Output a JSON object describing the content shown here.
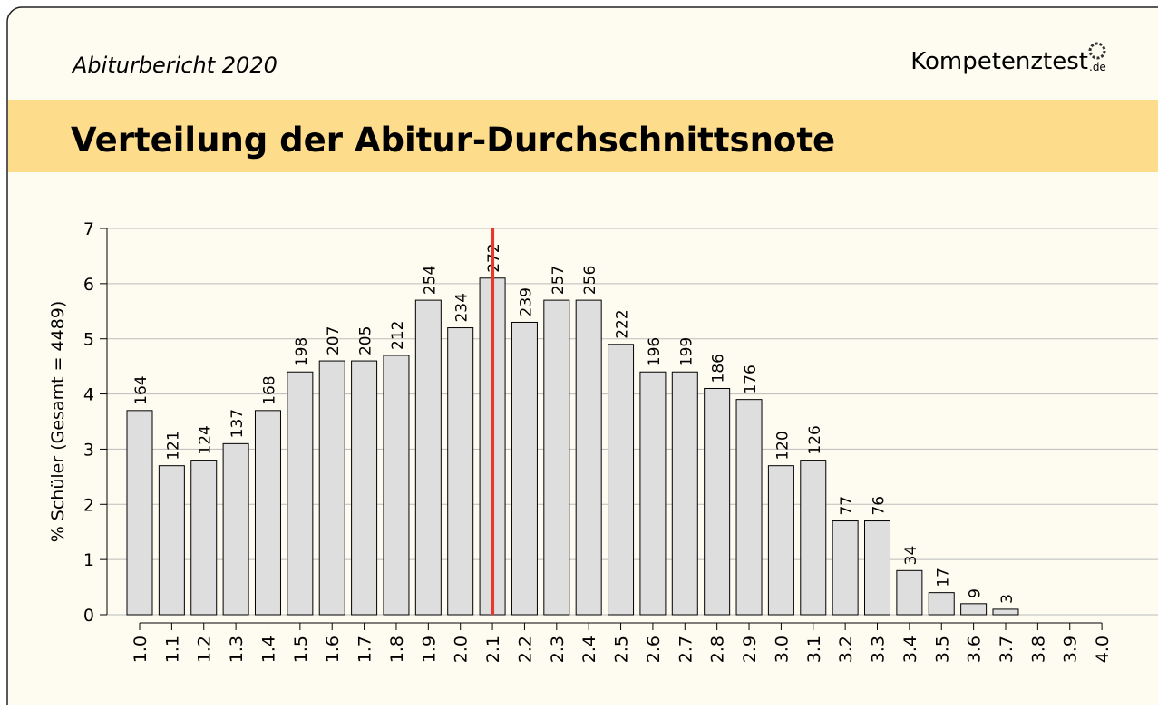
{
  "header": {
    "subtitle": "Abiturbericht 2020",
    "logo": "Kompetenztest",
    "logo_suffix": ".de"
  },
  "chart_data": {
    "type": "bar",
    "title": "Verteilung der Abitur-Durchschnittsnote",
    "y_label": "% Schüler (Gesamt = 4489)",
    "categories": [
      "1.0",
      "1.1",
      "1.2",
      "1.3",
      "1.4",
      "1.5",
      "1.6",
      "1.7",
      "1.8",
      "1.9",
      "2.0",
      "2.1",
      "2.2",
      "2.3",
      "2.4",
      "2.5",
      "2.6",
      "2.7",
      "2.8",
      "2.9",
      "3.0",
      "3.1",
      "3.2",
      "3.3",
      "3.4",
      "3.5",
      "3.6",
      "3.7",
      "3.8",
      "3.9",
      "4.0"
    ],
    "values": [
      3.7,
      2.7,
      2.8,
      3.1,
      3.7,
      4.4,
      4.6,
      4.6,
      4.7,
      5.7,
      5.2,
      6.1,
      5.3,
      5.7,
      5.7,
      4.9,
      4.4,
      4.4,
      4.1,
      3.9,
      2.7,
      2.8,
      1.7,
      1.7,
      0.8,
      0.4,
      0.2,
      0.1,
      0,
      0,
      0
    ],
    "counts": [
      164,
      121,
      124,
      137,
      168,
      198,
      207,
      205,
      212,
      254,
      234,
      272,
      239,
      257,
      256,
      222,
      196,
      199,
      186,
      176,
      120,
      126,
      77,
      76,
      34,
      17,
      9,
      3,
      null,
      null,
      null
    ],
    "color": "#dedede",
    "mean_line": {
      "category": "2.1",
      "color": "#e8382a"
    },
    "ylim": [
      0,
      7
    ],
    "yticks": [
      0,
      1,
      2,
      3,
      4,
      5,
      6,
      7
    ],
    "grid": true
  }
}
